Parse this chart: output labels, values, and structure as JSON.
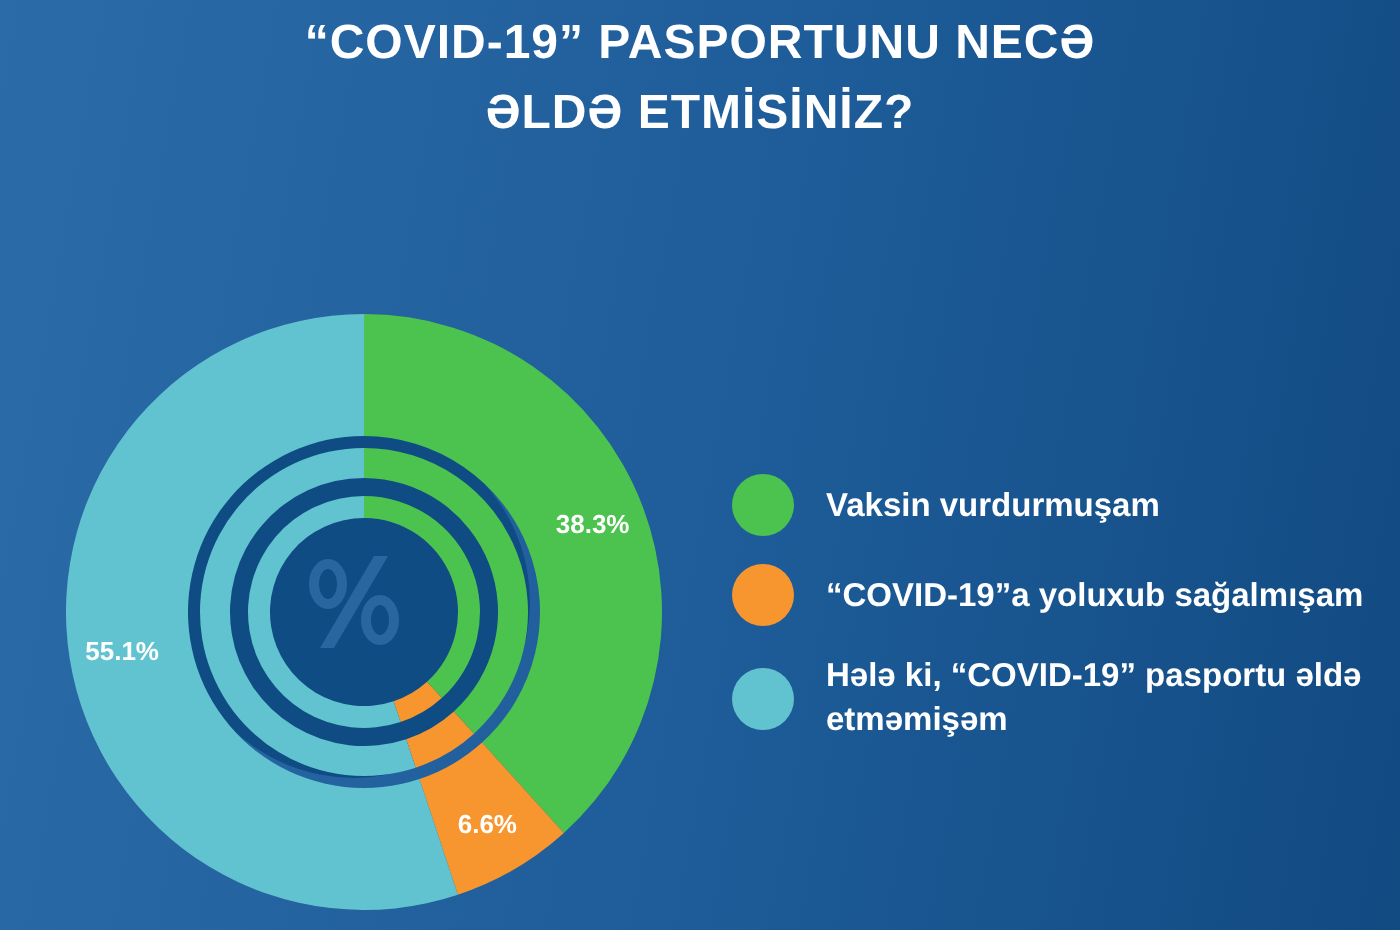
{
  "chart_data": {
    "type": "donut",
    "title": "“COVID-19” PASPORTUNU NECƏ ƏLDƏ ETMİSİNİZ?",
    "categories": [
      "Vaksin vurdurmuşam",
      "“COVID-19”a yoluxub sağalmışam",
      "Hələ ki, “COVID-19” pasportu əldə etməmişəm"
    ],
    "colors": [
      "#4cc24f",
      "#f7962f",
      "#62c3d0"
    ],
    "series": [
      {
        "values": [
          38.3,
          6.6,
          55.1
        ],
        "value_labels": [
          "38.3%",
          "6.6%",
          "55.1%"
        ]
      },
      {
        "values": [
          38.3,
          6.6,
          55.1
        ]
      },
      {
        "values": [
          38.3,
          6.6,
          55.1
        ]
      }
    ],
    "legend": "right"
  }
}
